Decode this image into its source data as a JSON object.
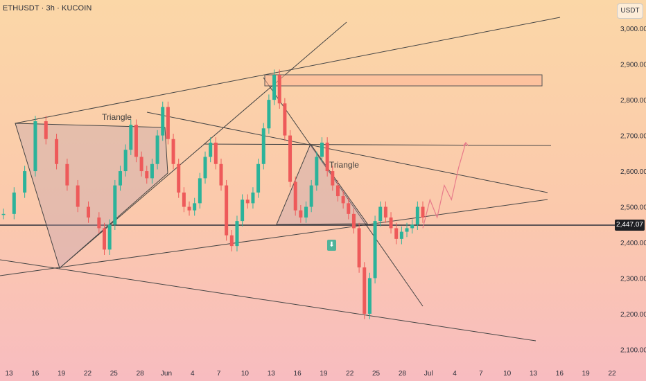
{
  "header": {
    "symbol": "ETHUSDT · 3h · KUCOIN",
    "currency": "USDT"
  },
  "chart_data": {
    "type": "candlestick",
    "title": "ETHUSDT · 3h · KUCOIN",
    "ylim": [
      2060,
      3080
    ],
    "y_ticks": [
      "3,000.00",
      "2,900.00",
      "2,800.00",
      "2,700.00",
      "2,600.00",
      "2,500.00",
      "2,400.00",
      "2,300.00",
      "2,200.00",
      "2,100.00"
    ],
    "y_tick_values": [
      3000,
      2900,
      2800,
      2700,
      2600,
      2500,
      2400,
      2300,
      2200,
      2100
    ],
    "x_ticks": [
      "13",
      "16",
      "19",
      "22",
      "25",
      "28",
      "Jun",
      "4",
      "7",
      "10",
      "13",
      "16",
      "19",
      "22",
      "25",
      "28",
      "Jul",
      "4",
      "7",
      "10",
      "13",
      "16",
      "19",
      "22"
    ],
    "current_price": "2,447.07",
    "current_price_value": 2447.07,
    "annotations": [
      "Triangle",
      "Triangle"
    ],
    "price_path": [
      [
        0,
        2480
      ],
      [
        2,
        2540
      ],
      [
        4,
        2600
      ],
      [
        6,
        2740
      ],
      [
        8,
        2690
      ],
      [
        10,
        2620
      ],
      [
        12,
        2560
      ],
      [
        14,
        2500
      ],
      [
        16,
        2470
      ],
      [
        18,
        2440
      ],
      [
        19,
        2380
      ],
      [
        20,
        2450
      ],
      [
        21,
        2560
      ],
      [
        22,
        2600
      ],
      [
        23,
        2660
      ],
      [
        24,
        2730
      ],
      [
        25,
        2640
      ],
      [
        26,
        2600
      ],
      [
        27,
        2580
      ],
      [
        28,
        2620
      ],
      [
        29,
        2700
      ],
      [
        30,
        2780
      ],
      [
        31,
        2690
      ],
      [
        32,
        2620
      ],
      [
        33,
        2540
      ],
      [
        34,
        2500
      ],
      [
        35,
        2490
      ],
      [
        36,
        2510
      ],
      [
        37,
        2580
      ],
      [
        38,
        2640
      ],
      [
        39,
        2680
      ],
      [
        40,
        2620
      ],
      [
        41,
        2560
      ],
      [
        42,
        2420
      ],
      [
        43,
        2390
      ],
      [
        44,
        2460
      ],
      [
        45,
        2520
      ],
      [
        46,
        2510
      ],
      [
        47,
        2540
      ],
      [
        48,
        2620
      ],
      [
        49,
        2720
      ],
      [
        50,
        2800
      ],
      [
        51,
        2870
      ],
      [
        52,
        2790
      ],
      [
        53,
        2700
      ],
      [
        54,
        2570
      ],
      [
        55,
        2490
      ],
      [
        56,
        2470
      ],
      [
        57,
        2500
      ],
      [
        58,
        2560
      ],
      [
        59,
        2640
      ],
      [
        60,
        2680
      ],
      [
        61,
        2600
      ],
      [
        62,
        2560
      ],
      [
        63,
        2530
      ],
      [
        64,
        2510
      ],
      [
        65,
        2480
      ],
      [
        66,
        2440
      ],
      [
        67,
        2330
      ],
      [
        68,
        2200
      ],
      [
        69,
        2300
      ],
      [
        70,
        2460
      ],
      [
        71,
        2500
      ],
      [
        72,
        2470
      ],
      [
        73,
        2440
      ],
      [
        74,
        2410
      ],
      [
        75,
        2430
      ],
      [
        76,
        2440
      ],
      [
        77,
        2450
      ],
      [
        78,
        2500
      ],
      [
        79,
        2470
      ]
    ],
    "projection": [
      [
        79,
        2440
      ],
      [
        80,
        2520
      ],
      [
        81,
        2470
      ],
      [
        82,
        2560
      ],
      [
        83,
        2520
      ],
      [
        84,
        2610
      ],
      [
        85,
        2680
      ]
    ],
    "resistance_zone": [
      2845,
      2875
    ],
    "horizontal_levels": [
      2447.07,
      2680
    ],
    "grid": false,
    "legend": "none"
  }
}
